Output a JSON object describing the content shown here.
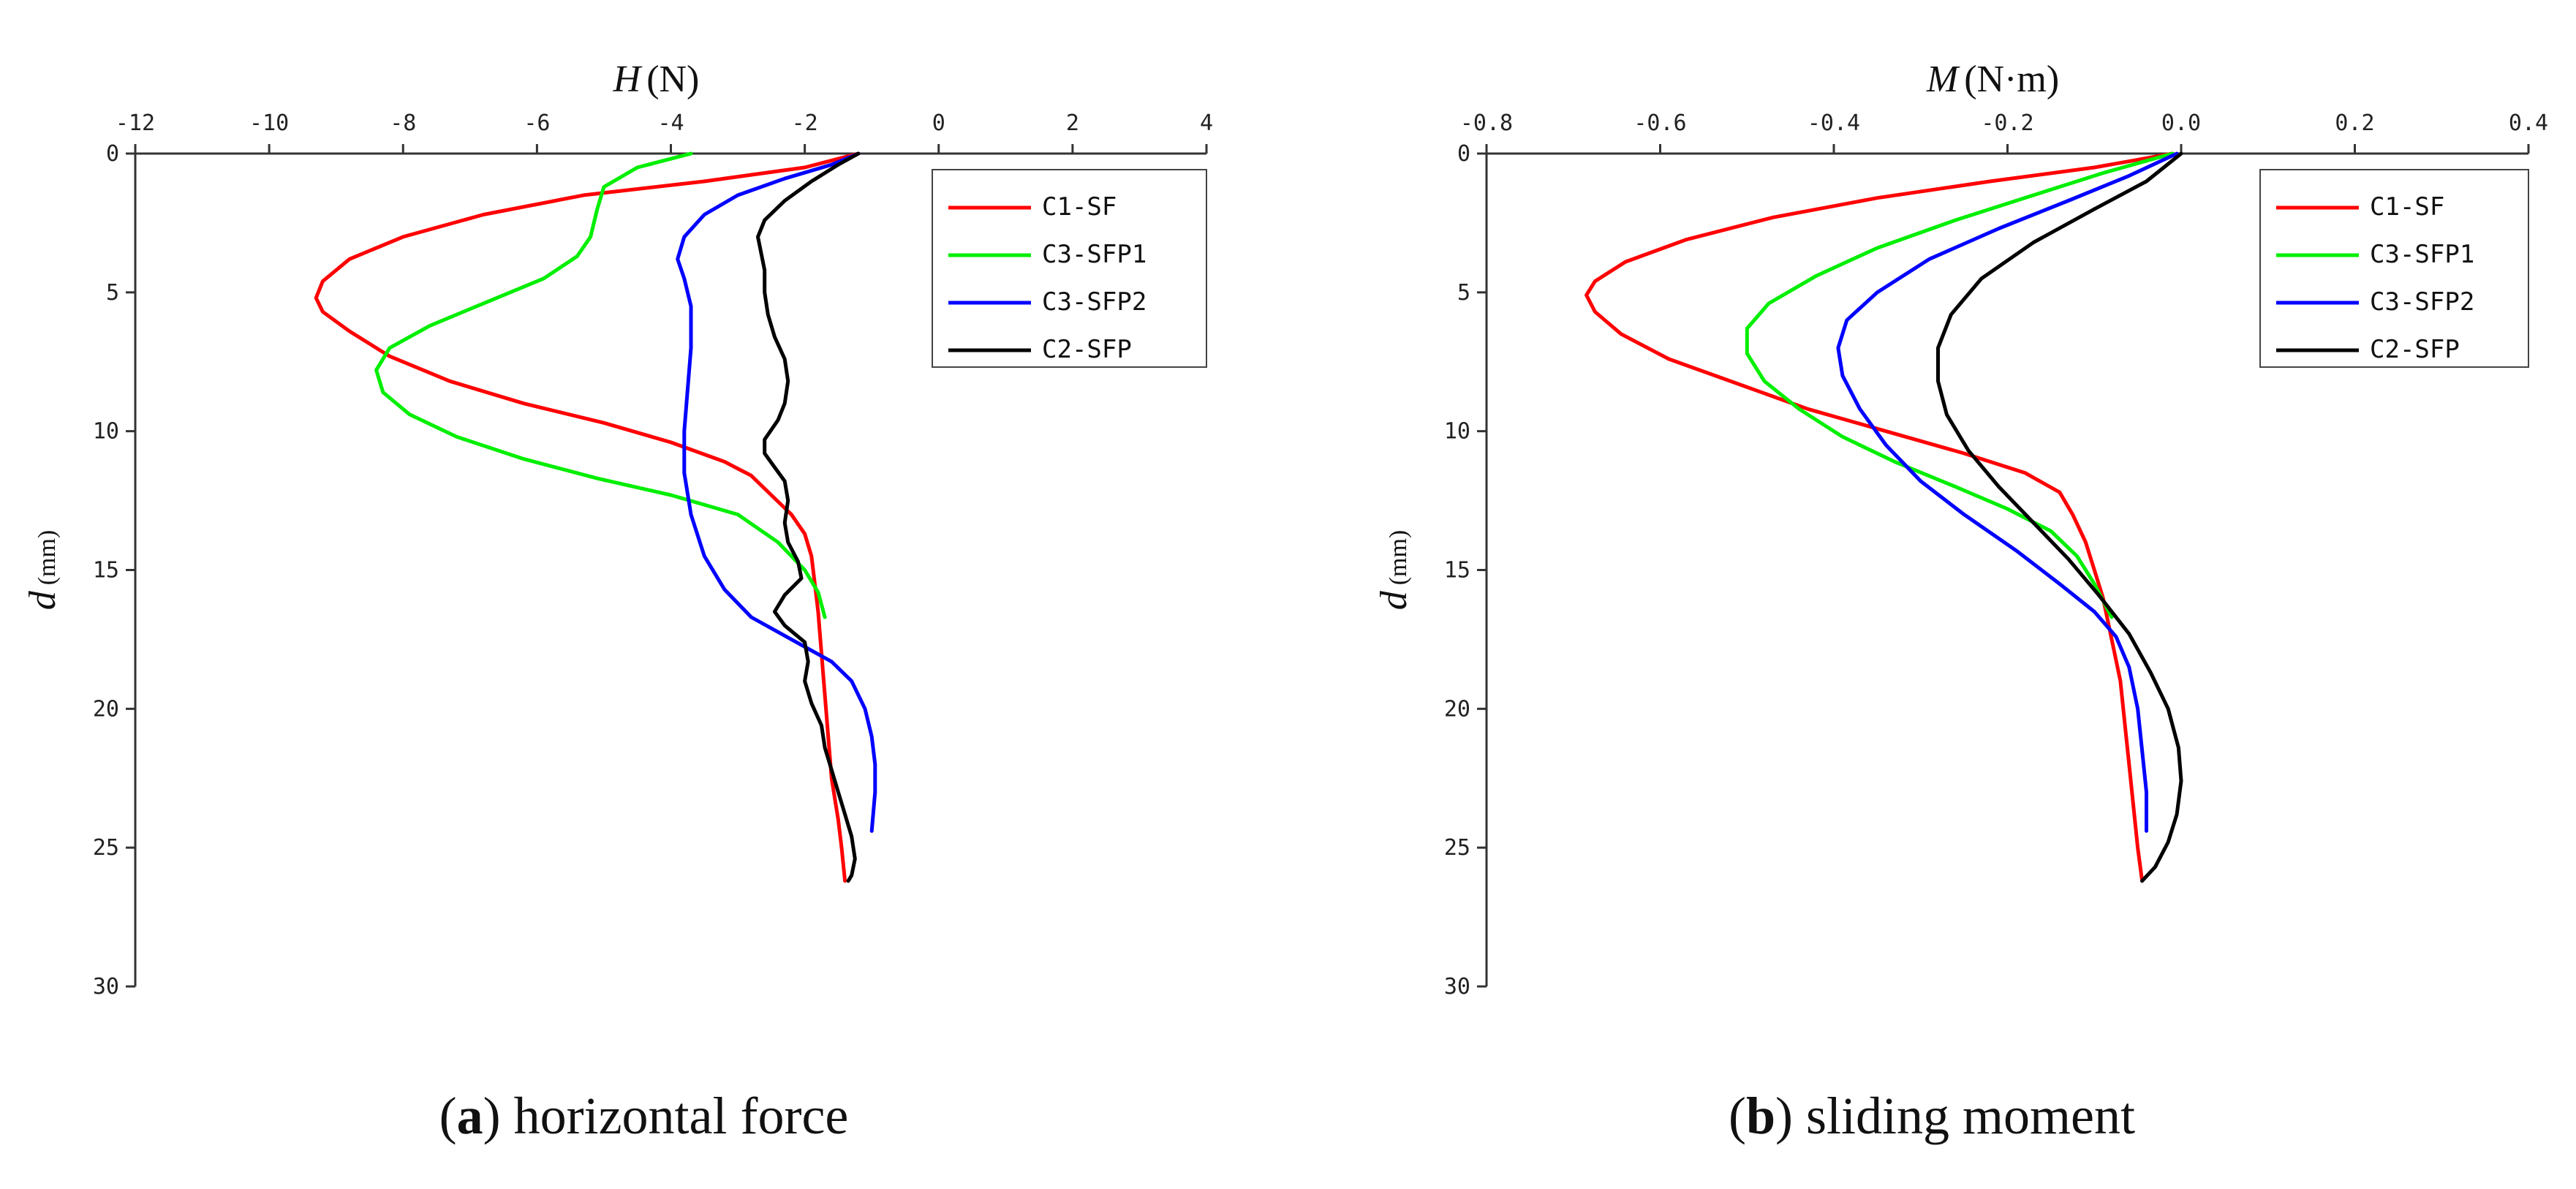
{
  "chart_data": [
    {
      "type": "line",
      "caption_letter": "a",
      "caption_text": "horizontal force",
      "xvar": "H",
      "xunit": "(N)",
      "yvar": "d",
      "yunit": "(mm)",
      "xlim": [
        -12,
        4
      ],
      "ylim": [
        0,
        30
      ],
      "y_inverted": true,
      "x_axis_position": "top",
      "xticks": [
        -12,
        -10,
        -8,
        -6,
        -4,
        -2,
        0,
        2,
        4
      ],
      "xtick_labels": [
        "-12",
        "-10",
        "-8",
        "-6",
        "-4",
        "-2",
        "0",
        "2",
        "4"
      ],
      "yticks": [
        0,
        5,
        10,
        15,
        20,
        25,
        30
      ],
      "ytick_labels": [
        "0",
        "5",
        "10",
        "15",
        "20",
        "25",
        "30"
      ],
      "grid": false,
      "legend_position": "top-right",
      "series": [
        {
          "name": "C1-SF",
          "color": "#ff0000",
          "points": [
            [
              -1.2,
              0.0
            ],
            [
              -2.0,
              0.5
            ],
            [
              -3.5,
              1.0
            ],
            [
              -5.3,
              1.5
            ],
            [
              -6.8,
              2.2
            ],
            [
              -8.0,
              3.0
            ],
            [
              -8.8,
              3.8
            ],
            [
              -9.2,
              4.6
            ],
            [
              -9.3,
              5.2
            ],
            [
              -9.2,
              5.7
            ],
            [
              -8.8,
              6.4
            ],
            [
              -8.2,
              7.3
            ],
            [
              -7.3,
              8.2
            ],
            [
              -6.2,
              9.0
            ],
            [
              -5.0,
              9.7
            ],
            [
              -4.0,
              10.4
            ],
            [
              -3.2,
              11.1
            ],
            [
              -2.8,
              11.6
            ],
            [
              -2.5,
              12.3
            ],
            [
              -2.2,
              13.0
            ],
            [
              -2.0,
              13.7
            ],
            [
              -1.9,
              14.5
            ],
            [
              -1.85,
              15.5
            ],
            [
              -1.8,
              16.5
            ],
            [
              -1.75,
              18.0
            ],
            [
              -1.7,
              19.5
            ],
            [
              -1.65,
              21.0
            ],
            [
              -1.6,
              22.5
            ],
            [
              -1.5,
              24.0
            ],
            [
              -1.45,
              25.0
            ],
            [
              -1.4,
              26.2
            ]
          ]
        },
        {
          "name": "C3-SFP1",
          "color": "#00ee00",
          "points": [
            [
              -3.7,
              0.0
            ],
            [
              -4.5,
              0.5
            ],
            [
              -5.0,
              1.2
            ],
            [
              -5.1,
              2.0
            ],
            [
              -5.2,
              3.0
            ],
            [
              -5.4,
              3.7
            ],
            [
              -5.9,
              4.5
            ],
            [
              -6.7,
              5.3
            ],
            [
              -7.6,
              6.2
            ],
            [
              -8.2,
              7.0
            ],
            [
              -8.4,
              7.8
            ],
            [
              -8.3,
              8.6
            ],
            [
              -7.9,
              9.4
            ],
            [
              -7.2,
              10.2
            ],
            [
              -6.2,
              11.0
            ],
            [
              -5.1,
              11.7
            ],
            [
              -4.0,
              12.3
            ],
            [
              -3.0,
              13.0
            ],
            [
              -2.4,
              14.0
            ],
            [
              -2.0,
              15.0
            ],
            [
              -1.8,
              15.8
            ],
            [
              -1.7,
              16.7
            ]
          ]
        },
        {
          "name": "C3-SFP2",
          "color": "#0000ff",
          "points": [
            [
              -1.2,
              0.0
            ],
            [
              -1.6,
              0.4
            ],
            [
              -2.3,
              0.9
            ],
            [
              -3.0,
              1.5
            ],
            [
              -3.5,
              2.2
            ],
            [
              -3.8,
              3.0
            ],
            [
              -3.9,
              3.8
            ],
            [
              -3.8,
              4.5
            ],
            [
              -3.7,
              5.5
            ],
            [
              -3.7,
              7.0
            ],
            [
              -3.75,
              8.5
            ],
            [
              -3.8,
              10.0
            ],
            [
              -3.8,
              11.5
            ],
            [
              -3.7,
              13.0
            ],
            [
              -3.5,
              14.5
            ],
            [
              -3.2,
              15.7
            ],
            [
              -2.8,
              16.7
            ],
            [
              -2.2,
              17.5
            ],
            [
              -1.6,
              18.3
            ],
            [
              -1.3,
              19.0
            ],
            [
              -1.1,
              20.0
            ],
            [
              -1.0,
              21.0
            ],
            [
              -0.95,
              22.0
            ],
            [
              -0.95,
              23.0
            ],
            [
              -1.0,
              24.4
            ]
          ]
        },
        {
          "name": "C2-SFP",
          "color": "#000000",
          "points": [
            [
              -1.2,
              0.0
            ],
            [
              -1.5,
              0.4
            ],
            [
              -1.9,
              1.0
            ],
            [
              -2.3,
              1.7
            ],
            [
              -2.6,
              2.4
            ],
            [
              -2.7,
              3.0
            ],
            [
              -2.65,
              3.6
            ],
            [
              -2.6,
              4.2
            ],
            [
              -2.6,
              5.0
            ],
            [
              -2.55,
              5.8
            ],
            [
              -2.45,
              6.6
            ],
            [
              -2.3,
              7.4
            ],
            [
              -2.25,
              8.2
            ],
            [
              -2.3,
              9.0
            ],
            [
              -2.4,
              9.6
            ],
            [
              -2.6,
              10.3
            ],
            [
              -2.6,
              10.8
            ],
            [
              -2.45,
              11.3
            ],
            [
              -2.3,
              11.8
            ],
            [
              -2.25,
              12.5
            ],
            [
              -2.3,
              13.3
            ],
            [
              -2.25,
              14.0
            ],
            [
              -2.1,
              14.7
            ],
            [
              -2.05,
              15.3
            ],
            [
              -2.3,
              15.9
            ],
            [
              -2.45,
              16.5
            ],
            [
              -2.3,
              17.0
            ],
            [
              -2.0,
              17.6
            ],
            [
              -1.95,
              18.3
            ],
            [
              -2.0,
              19.0
            ],
            [
              -1.9,
              19.8
            ],
            [
              -1.75,
              20.6
            ],
            [
              -1.7,
              21.4
            ],
            [
              -1.6,
              22.2
            ],
            [
              -1.5,
              23.0
            ],
            [
              -1.4,
              23.8
            ],
            [
              -1.3,
              24.6
            ],
            [
              -1.25,
              25.4
            ],
            [
              -1.3,
              26.0
            ],
            [
              -1.35,
              26.2
            ]
          ]
        }
      ]
    },
    {
      "type": "line",
      "caption_letter": "b",
      "caption_text": "sliding moment",
      "xvar": "M",
      "xunit": "(N·m)",
      "yvar": "d",
      "yunit": "(mm)",
      "xlim": [
        -0.8,
        0.4
      ],
      "ylim": [
        0,
        30
      ],
      "y_inverted": true,
      "x_axis_position": "top",
      "xticks": [
        -0.8,
        -0.6,
        -0.4,
        -0.2,
        0.0,
        0.2,
        0.4
      ],
      "xtick_labels": [
        "-0.8",
        "-0.6",
        "-0.4",
        "-0.2",
        "0.0",
        "0.2",
        "0.4"
      ],
      "yticks": [
        0,
        5,
        10,
        15,
        20,
        25,
        30
      ],
      "ytick_labels": [
        "0",
        "5",
        "10",
        "15",
        "20",
        "25",
        "30"
      ],
      "grid": false,
      "legend_position": "top-right",
      "series": [
        {
          "name": "C1-SF",
          "color": "#ff0000",
          "points": [
            [
              -0.01,
              0.0
            ],
            [
              -0.1,
              0.5
            ],
            [
              -0.22,
              1.0
            ],
            [
              -0.35,
              1.6
            ],
            [
              -0.47,
              2.3
            ],
            [
              -0.57,
              3.1
            ],
            [
              -0.64,
              3.9
            ],
            [
              -0.675,
              4.6
            ],
            [
              -0.685,
              5.1
            ],
            [
              -0.675,
              5.7
            ],
            [
              -0.645,
              6.5
            ],
            [
              -0.59,
              7.4
            ],
            [
              -0.51,
              8.3
            ],
            [
              -0.43,
              9.2
            ],
            [
              -0.34,
              10.0
            ],
            [
              -0.25,
              10.8
            ],
            [
              -0.18,
              11.5
            ],
            [
              -0.14,
              12.2
            ],
            [
              -0.125,
              13.0
            ],
            [
              -0.11,
              14.0
            ],
            [
              -0.1,
              15.0
            ],
            [
              -0.09,
              16.0
            ],
            [
              -0.08,
              17.5
            ],
            [
              -0.07,
              19.0
            ],
            [
              -0.065,
              20.5
            ],
            [
              -0.06,
              22.0
            ],
            [
              -0.055,
              23.5
            ],
            [
              -0.05,
              25.0
            ],
            [
              -0.045,
              26.2
            ]
          ]
        },
        {
          "name": "C3-SFP1",
          "color": "#00ee00",
          "points": [
            [
              -0.01,
              0.0
            ],
            [
              -0.09,
              0.7
            ],
            [
              -0.17,
              1.5
            ],
            [
              -0.26,
              2.4
            ],
            [
              -0.35,
              3.4
            ],
            [
              -0.42,
              4.4
            ],
            [
              -0.475,
              5.4
            ],
            [
              -0.5,
              6.3
            ],
            [
              -0.5,
              7.2
            ],
            [
              -0.48,
              8.2
            ],
            [
              -0.44,
              9.2
            ],
            [
              -0.39,
              10.2
            ],
            [
              -0.33,
              11.1
            ],
            [
              -0.26,
              12.0
            ],
            [
              -0.2,
              12.8
            ],
            [
              -0.15,
              13.6
            ],
            [
              -0.12,
              14.5
            ],
            [
              -0.1,
              15.5
            ],
            [
              -0.08,
              16.7
            ]
          ]
        },
        {
          "name": "C3-SFP2",
          "color": "#0000ff",
          "points": [
            [
              -0.005,
              0.0
            ],
            [
              -0.06,
              0.8
            ],
            [
              -0.13,
              1.7
            ],
            [
              -0.21,
              2.7
            ],
            [
              -0.29,
              3.8
            ],
            [
              -0.35,
              5.0
            ],
            [
              -0.385,
              6.0
            ],
            [
              -0.395,
              7.0
            ],
            [
              -0.39,
              8.0
            ],
            [
              -0.37,
              9.2
            ],
            [
              -0.34,
              10.5
            ],
            [
              -0.3,
              11.8
            ],
            [
              -0.25,
              13.0
            ],
            [
              -0.19,
              14.3
            ],
            [
              -0.14,
              15.5
            ],
            [
              -0.1,
              16.5
            ],
            [
              -0.075,
              17.4
            ],
            [
              -0.06,
              18.5
            ],
            [
              -0.05,
              20.0
            ],
            [
              -0.045,
              21.5
            ],
            [
              -0.04,
              23.0
            ],
            [
              -0.04,
              24.4
            ]
          ]
        },
        {
          "name": "C2-SFP",
          "color": "#000000",
          "points": [
            [
              0.0,
              0.0
            ],
            [
              -0.04,
              1.0
            ],
            [
              -0.1,
              2.0
            ],
            [
              -0.17,
              3.2
            ],
            [
              -0.23,
              4.5
            ],
            [
              -0.265,
              5.8
            ],
            [
              -0.28,
              7.0
            ],
            [
              -0.28,
              8.2
            ],
            [
              -0.27,
              9.4
            ],
            [
              -0.245,
              10.7
            ],
            [
              -0.21,
              12.0
            ],
            [
              -0.17,
              13.3
            ],
            [
              -0.13,
              14.6
            ],
            [
              -0.095,
              15.9
            ],
            [
              -0.06,
              17.3
            ],
            [
              -0.035,
              18.7
            ],
            [
              -0.015,
              20.0
            ],
            [
              -0.003,
              21.4
            ],
            [
              0.0,
              22.6
            ],
            [
              -0.005,
              23.8
            ],
            [
              -0.015,
              24.8
            ],
            [
              -0.03,
              25.7
            ],
            [
              -0.045,
              26.2
            ]
          ]
        }
      ]
    }
  ]
}
